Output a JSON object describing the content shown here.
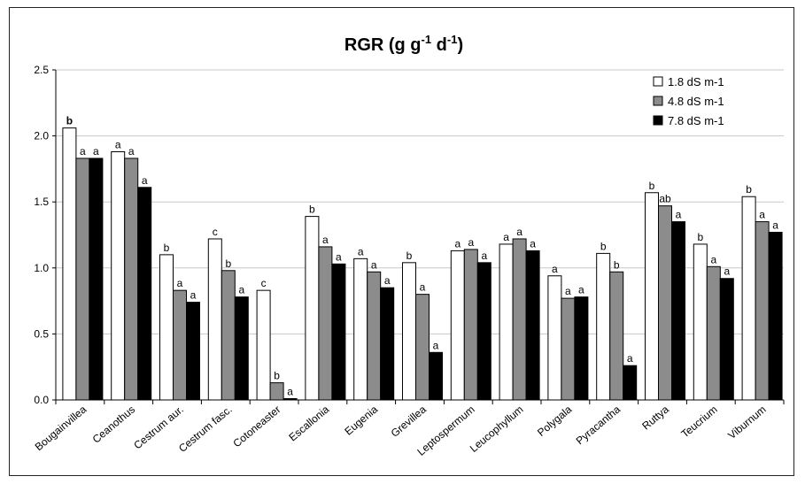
{
  "chart_data": {
    "type": "bar",
    "title": "RGR (g g-1 d-1)",
    "title_parts": {
      "base": "RGR (g g",
      "exp1": "-1",
      "mid": " d",
      "exp2": "-1",
      "end": ")"
    },
    "ylim": [
      0,
      2.5
    ],
    "yticks": [
      "0.0",
      "0.5",
      "1.0",
      "1.5",
      "2.0",
      "2.5"
    ],
    "grid": true,
    "legend_position": "top-right",
    "categories": [
      "Bougainvillea",
      "Ceanothus",
      "Cestrum aur.",
      "Cestrum fasc.",
      "Cotoneaster",
      "Escallonia",
      "Eugenia",
      "Grevillea",
      "Leptospermum",
      "Leucophyllum",
      "Polygala",
      "Pyracantha",
      "Ruttya",
      "Teucrium",
      "Viburnum"
    ],
    "series": [
      {
        "name": "1.8  dS m-1",
        "color": "#ffffff",
        "values": [
          2.06,
          1.88,
          1.1,
          1.22,
          0.83,
          1.39,
          1.07,
          1.04,
          1.13,
          1.18,
          0.94,
          1.11,
          1.57,
          1.18,
          1.54
        ]
      },
      {
        "name": "4.8  dS m-1",
        "color": "#8c8c8c",
        "values": [
          1.83,
          1.83,
          0.83,
          0.98,
          0.13,
          1.16,
          0.97,
          0.8,
          1.14,
          1.22,
          0.77,
          0.97,
          1.47,
          1.01,
          1.35
        ]
      },
      {
        "name": "7.8  dS m-1",
        "color": "#000000",
        "values": [
          1.83,
          1.61,
          0.74,
          0.78,
          0.01,
          1.03,
          0.85,
          0.36,
          1.04,
          1.13,
          0.78,
          0.26,
          1.35,
          0.92,
          1.27
        ]
      }
    ],
    "annotations": [
      [
        "b",
        "a",
        "a"
      ],
      [
        "a",
        "a",
        "a"
      ],
      [
        "b",
        "a",
        "a"
      ],
      [
        "c",
        "b",
        "a"
      ],
      [
        "c",
        "b",
        "a"
      ],
      [
        "b",
        "a",
        "a"
      ],
      [
        "a",
        "a",
        "a"
      ],
      [
        "b",
        "a",
        "a"
      ],
      [
        "a",
        "a",
        "a"
      ],
      [
        "a",
        "a",
        "a"
      ],
      [
        "a",
        "a",
        "a"
      ],
      [
        "b",
        "b",
        "a"
      ],
      [
        "b",
        "ab",
        "a"
      ],
      [
        "b",
        "a",
        "a"
      ],
      [
        "b",
        "a",
        "a"
      ]
    ]
  }
}
